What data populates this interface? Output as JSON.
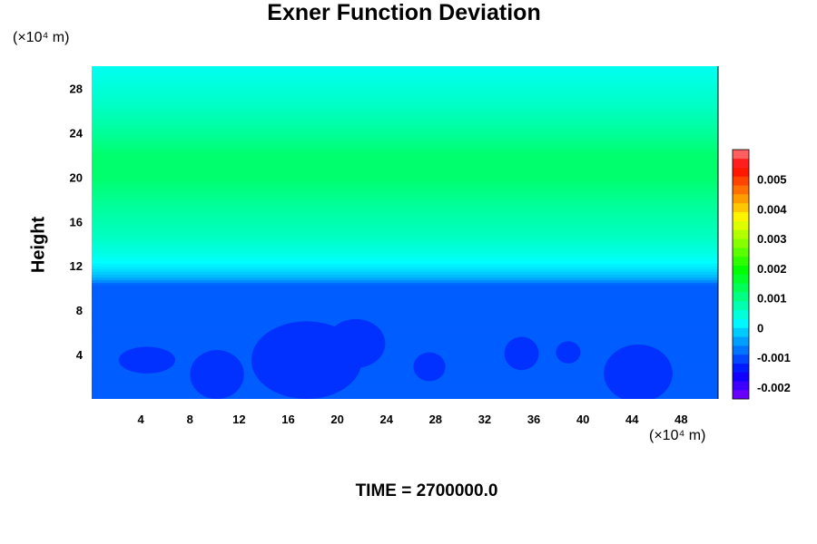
{
  "chart_data": {
    "type": "heatmap",
    "title": "Exner Function Deviation",
    "ylabel": "Height",
    "x_unit": "(×10⁴ m)",
    "y_unit": "(×10⁴ m)",
    "xlim": [
      0,
      51
    ],
    "ylim": [
      0,
      30
    ],
    "x_ticks": [
      4,
      8,
      12,
      16,
      20,
      24,
      28,
      32,
      36,
      40,
      44,
      48
    ],
    "y_ticks": [
      4,
      8,
      12,
      16,
      20,
      24,
      28
    ],
    "vertical_profile": [
      {
        "height": 0,
        "value": -0.0009
      },
      {
        "height": 10.3,
        "value": -0.0009
      },
      {
        "height": 10.6,
        "value": -0.0006
      },
      {
        "height": 11.0,
        "value": -0.0003
      },
      {
        "height": 11.7,
        "value": 0.0
      },
      {
        "height": 12.7,
        "value": 0.0003
      },
      {
        "height": 14.5,
        "value": 0.0006
      },
      {
        "height": 17.5,
        "value": 0.0009
      },
      {
        "height": 20.0,
        "value": 0.0012
      },
      {
        "height": 22.0,
        "value": 0.0012
      },
      {
        "height": 24.0,
        "value": 0.0009
      },
      {
        "height": 26.5,
        "value": 0.0006
      },
      {
        "height": 30.0,
        "value": 0.0003
      }
    ],
    "anomaly_regions": [
      {
        "x": 4.5,
        "y": 3.5,
        "rx": 2.3,
        "ry": 1.2,
        "value": -0.0012
      },
      {
        "x": 10.2,
        "y": 2.2,
        "rx": 2.2,
        "ry": 2.2,
        "value": -0.0012
      },
      {
        "x": 17.5,
        "y": 3.5,
        "rx": 4.5,
        "ry": 3.5,
        "value": -0.0012
      },
      {
        "x": 21.5,
        "y": 5.0,
        "rx": 2.4,
        "ry": 2.2,
        "value": -0.0012
      },
      {
        "x": 27.5,
        "y": 2.9,
        "rx": 1.3,
        "ry": 1.3,
        "value": -0.0012
      },
      {
        "x": 35.0,
        "y": 4.1,
        "rx": 1.4,
        "ry": 1.5,
        "value": -0.0012
      },
      {
        "x": 38.8,
        "y": 4.2,
        "rx": 1.0,
        "ry": 1.0,
        "value": -0.0012
      },
      {
        "x": 44.5,
        "y": 2.3,
        "rx": 2.8,
        "ry": 2.6,
        "value": -0.0012
      }
    ],
    "colorbar": {
      "min": -0.0024,
      "max": 0.006,
      "step": 0.0003,
      "labels": [
        "0.005",
        "0.004",
        "0.003",
        "0.002",
        "0.001",
        "0",
        "-0.001",
        "-0.002"
      ],
      "label_values": [
        0.005,
        0.004,
        0.003,
        0.002,
        0.001,
        0,
        -0.001,
        -0.002
      ]
    },
    "time_label": "TIME = 2700000.0"
  }
}
